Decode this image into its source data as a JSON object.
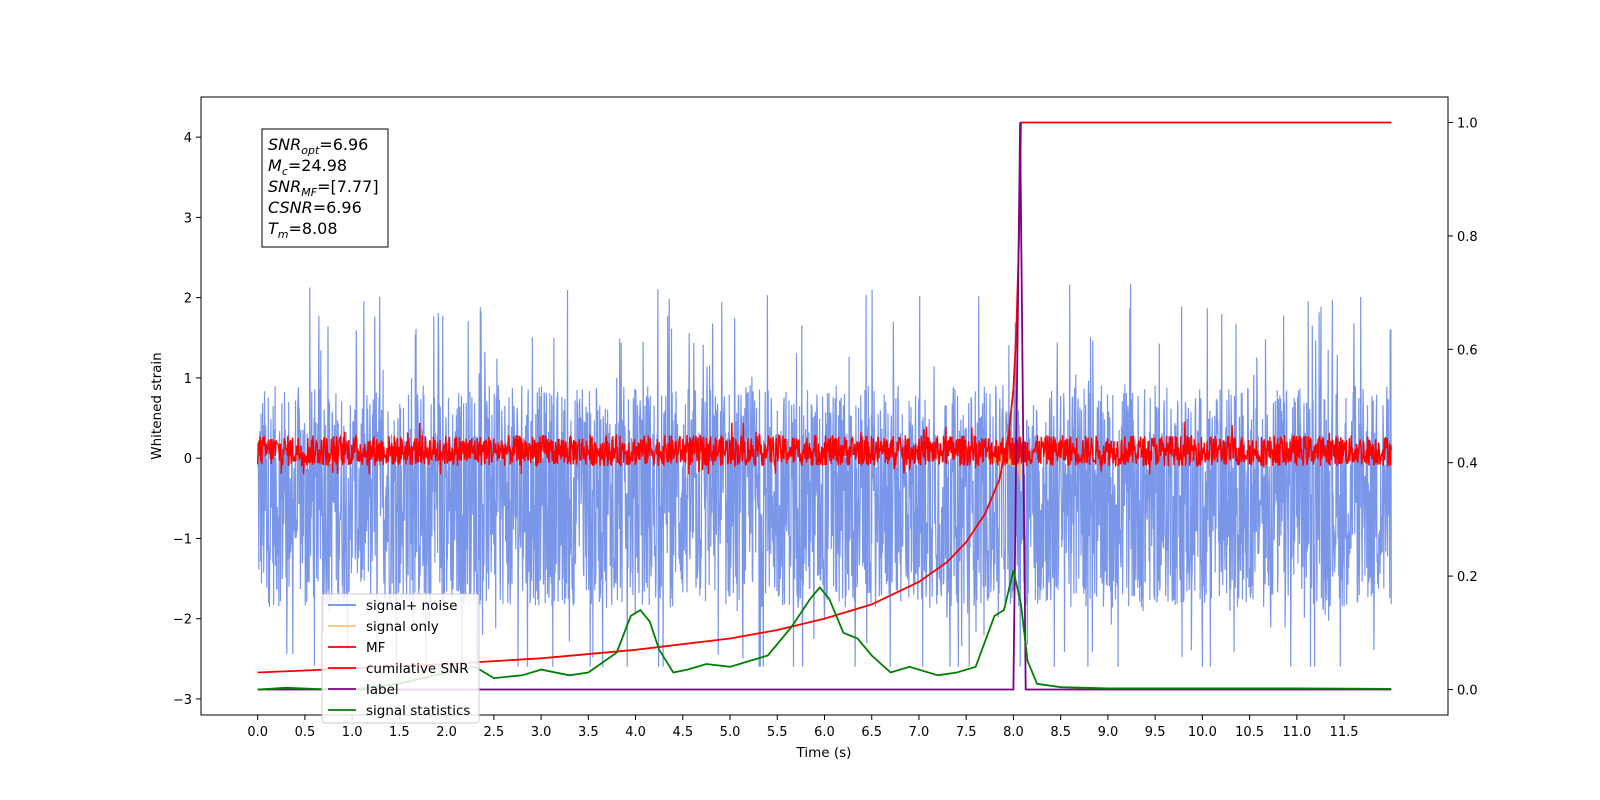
{
  "chart_data": {
    "type": "line",
    "xlabel": "Time (s)",
    "ylabel_left": "Whitened strain",
    "ylabel_right": "",
    "x_ticks": [
      "0.0",
      "0.5",
      "1.0",
      "1.5",
      "2.0",
      "2.5",
      "3.0",
      "3.5",
      "4.0",
      "4.5",
      "5.0",
      "5.5",
      "6.0",
      "6.5",
      "7.0",
      "7.5",
      "8.0",
      "8.5",
      "9.0",
      "9.5",
      "10.0",
      "10.5",
      "11.0",
      "11.5"
    ],
    "y_left_ticks": [
      "−3",
      "−2",
      "−1",
      "0",
      "1",
      "2",
      "3",
      "4"
    ],
    "y_right_ticks": [
      "0.0",
      "0.2",
      "0.4",
      "0.6",
      "0.8",
      "1.0"
    ],
    "xlim": [
      -0.6,
      12.6
    ],
    "ylim_left": [
      -3.2,
      4.5
    ],
    "ylim_right": [
      -0.045,
      1.045
    ],
    "grid": false,
    "legend_position": "lower-left",
    "info_box": [
      {
        "base": "SNR",
        "sub": "opt",
        "rest": "=6.96"
      },
      {
        "base": "M",
        "sub": "c",
        "rest": "=24.98"
      },
      {
        "base": "SNR",
        "sub": "MF",
        "rest": "=[7.77]"
      },
      {
        "base": "CSNR",
        "sub": "",
        "rest": "=6.96"
      },
      {
        "base": "T",
        "sub": "m",
        "rest": "=8.08"
      }
    ],
    "series": [
      {
        "name": "signal+ noise",
        "color": "#6b8be5",
        "axis": "left",
        "style": "noise",
        "amplitude_range": [
          -2.6,
          2.45
        ]
      },
      {
        "name": "signal only",
        "color": "#f5b85a",
        "axis": "left",
        "style": "chirp",
        "merger_time": 8.08
      },
      {
        "name": "MF",
        "color": "#ff0000",
        "axis": "left",
        "style": "noise",
        "amplitude_range": [
          -0.2,
          0.5
        ]
      },
      {
        "name": "cumilative SNR",
        "color": "#ff0000",
        "axis": "right",
        "x": [
          0.0,
          1.0,
          2.0,
          3.0,
          4.0,
          5.0,
          5.5,
          6.0,
          6.5,
          7.0,
          7.3,
          7.5,
          7.7,
          7.85,
          7.95,
          8.0,
          8.03,
          8.06,
          8.08,
          12.0
        ],
        "y": [
          0.03,
          0.037,
          0.045,
          0.055,
          0.07,
          0.09,
          0.105,
          0.125,
          0.15,
          0.19,
          0.225,
          0.26,
          0.31,
          0.37,
          0.45,
          0.53,
          0.63,
          0.8,
          1.0,
          1.0
        ]
      },
      {
        "name": "label",
        "color": "#800080",
        "axis": "right",
        "x": [
          0.0,
          8.0,
          8.07,
          8.13,
          12.0
        ],
        "y": [
          0.0,
          0.0,
          1.0,
          0.0,
          0.0
        ]
      },
      {
        "name": "signal statistics",
        "color": "#008000",
        "axis": "right",
        "x": [
          0.0,
          0.3,
          0.6,
          1.0,
          1.5,
          2.0,
          2.3,
          2.5,
          2.8,
          3.0,
          3.3,
          3.5,
          3.8,
          3.95,
          4.05,
          4.15,
          4.25,
          4.4,
          4.55,
          4.75,
          5.0,
          5.2,
          5.4,
          5.65,
          5.85,
          5.95,
          6.05,
          6.2,
          6.35,
          6.5,
          6.7,
          6.9,
          7.2,
          7.4,
          7.6,
          7.8,
          7.9,
          8.0,
          8.08,
          8.15,
          8.25,
          8.5,
          9.0,
          10.0,
          11.0,
          12.0
        ],
        "y": [
          0.0,
          0.003,
          0.001,
          0.0,
          0.01,
          0.03,
          0.04,
          0.02,
          0.025,
          0.035,
          0.025,
          0.03,
          0.065,
          0.13,
          0.14,
          0.12,
          0.07,
          0.03,
          0.035,
          0.045,
          0.04,
          0.05,
          0.06,
          0.11,
          0.16,
          0.18,
          0.16,
          0.1,
          0.09,
          0.06,
          0.03,
          0.04,
          0.025,
          0.03,
          0.04,
          0.13,
          0.14,
          0.21,
          0.15,
          0.05,
          0.01,
          0.004,
          0.002,
          0.002,
          0.002,
          0.001
        ]
      }
    ]
  }
}
